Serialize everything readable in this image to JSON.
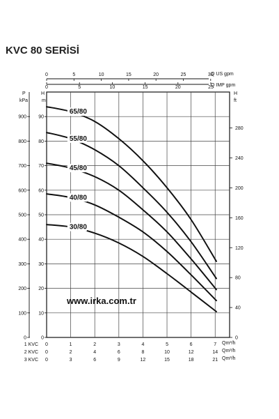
{
  "page_title": "KVC 80 SERİSİ",
  "watermark": "www.irka.com.tr",
  "colors": {
    "line": "#111111",
    "grid": "#444444",
    "background": "#ffffff"
  },
  "chart_data": {
    "type": "line",
    "title": "KVC 80 SERİSİ",
    "grid": true,
    "x_axis": {
      "primary_unit": "Qm³/h",
      "range": [
        0,
        7.6
      ],
      "ticks": [
        0,
        1,
        2,
        3,
        4,
        5,
        6,
        7
      ],
      "rows": [
        {
          "label": "1 KVC",
          "unit": "Qm³/h",
          "ticks": [
            "0",
            "1",
            "2",
            "3",
            "4",
            "5",
            "6",
            "7"
          ]
        },
        {
          "label": "2 KVC",
          "unit": "Qm³/h",
          "ticks": [
            "0",
            "2",
            "4",
            "6",
            "8",
            "10",
            "12",
            "14"
          ]
        },
        {
          "label": "3 KVC",
          "unit": "Qm³/h",
          "ticks": [
            "0",
            "3",
            "6",
            "9",
            "12",
            "15",
            "18",
            "21"
          ]
        }
      ],
      "top_us": {
        "unit": "Q US gpm",
        "ticks": [
          0,
          5,
          10,
          15,
          20,
          25,
          30
        ]
      },
      "top_imp": {
        "unit": "Q IMP gpm",
        "ticks": [
          0,
          5,
          10,
          15,
          20,
          25
        ]
      }
    },
    "y_axis": {
      "head_unit": "H m",
      "range": [
        0,
        100
      ],
      "head_ticks": [
        0,
        10,
        20,
        30,
        40,
        50,
        60,
        70,
        80,
        90
      ],
      "pressure_unit": "P kPa",
      "pressure_ticks": [
        0,
        100,
        200,
        300,
        400,
        500,
        600,
        700,
        800,
        900
      ],
      "feet_unit": "H ft",
      "feet_ticks": [
        0,
        40,
        80,
        120,
        160,
        200,
        240,
        280
      ]
    },
    "series": [
      {
        "name": "65/80",
        "x": [
          0,
          1,
          2,
          3,
          4,
          5,
          6,
          7.05
        ],
        "y": [
          94,
          92,
          88,
          81,
          72,
          61,
          48,
          31
        ]
      },
      {
        "name": "55/80",
        "x": [
          0,
          1,
          2,
          3,
          4,
          5,
          6,
          7.05
        ],
        "y": [
          83.5,
          81,
          76.5,
          70,
          61,
          51,
          39,
          24
        ]
      },
      {
        "name": "45/80",
        "x": [
          0,
          1,
          2,
          3,
          4,
          5,
          6,
          7.05
        ],
        "y": [
          71,
          69,
          65.5,
          60,
          52,
          43,
          32,
          19.5
        ]
      },
      {
        "name": "40/80",
        "x": [
          0,
          1,
          2,
          3,
          4,
          5,
          6,
          7.05
        ],
        "y": [
          58.5,
          57,
          54,
          49,
          43,
          35,
          25.5,
          15
        ]
      },
      {
        "name": "30/80",
        "x": [
          0,
          1,
          2,
          3,
          4,
          5,
          6,
          7.05
        ],
        "y": [
          46,
          45,
          42.5,
          38.5,
          33,
          26,
          18.5,
          10.5
        ]
      }
    ]
  }
}
